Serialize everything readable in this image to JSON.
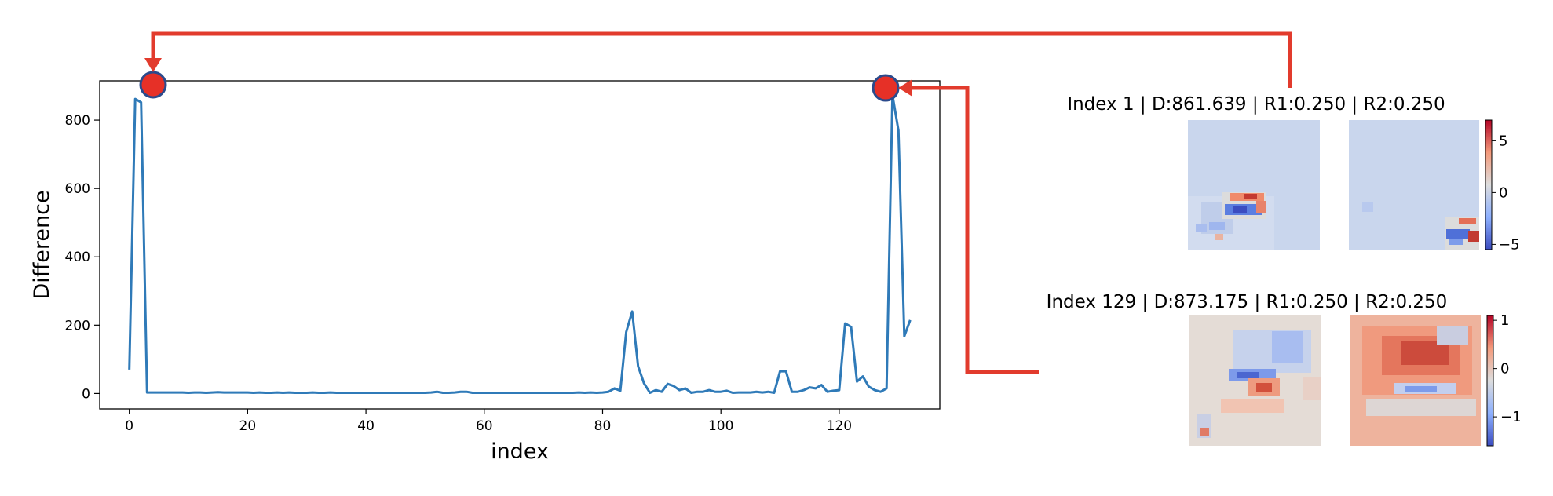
{
  "chart_data": [
    {
      "type": "line",
      "title": "",
      "xlabel": "index",
      "ylabel": "Difference",
      "xlim": [
        -5,
        137
      ],
      "ylim": [
        -45,
        915
      ],
      "xticks": [
        0,
        20,
        40,
        60,
        80,
        100,
        120
      ],
      "yticks": [
        0,
        200,
        400,
        600,
        800
      ],
      "grid": false,
      "line_color": "#2f7ab8",
      "x": [
        0,
        1,
        2,
        3,
        4,
        5,
        6,
        7,
        8,
        9,
        10,
        11,
        12,
        13,
        14,
        15,
        16,
        17,
        18,
        19,
        20,
        21,
        22,
        23,
        24,
        25,
        26,
        27,
        28,
        29,
        30,
        31,
        32,
        33,
        34,
        35,
        36,
        37,
        38,
        39,
        40,
        41,
        42,
        43,
        44,
        45,
        46,
        47,
        48,
        49,
        50,
        51,
        52,
        53,
        54,
        55,
        56,
        57,
        58,
        59,
        60,
        61,
        62,
        63,
        64,
        65,
        66,
        67,
        68,
        69,
        70,
        71,
        72,
        73,
        74,
        75,
        76,
        77,
        78,
        79,
        80,
        81,
        82,
        83,
        84,
        85,
        86,
        87,
        88,
        89,
        90,
        91,
        92,
        93,
        94,
        95,
        96,
        97,
        98,
        99,
        100,
        101,
        102,
        103,
        104,
        105,
        106,
        107,
        108,
        109,
        110,
        111,
        112,
        113,
        114,
        115,
        116,
        117,
        118,
        119,
        120,
        121,
        122,
        123,
        124,
        125,
        126,
        127,
        128,
        129,
        130,
        131,
        132
      ],
      "y": [
        70,
        862,
        852,
        3,
        3,
        3,
        3,
        3,
        3,
        3,
        2,
        3,
        3,
        2,
        3,
        4,
        3,
        3,
        3,
        3,
        3,
        2,
        3,
        2,
        2,
        3,
        2,
        3,
        2,
        2,
        2,
        3,
        2,
        2,
        3,
        2,
        2,
        2,
        2,
        2,
        2,
        2,
        2,
        2,
        2,
        2,
        2,
        2,
        2,
        2,
        2,
        3,
        5,
        2,
        2,
        3,
        5,
        5,
        2,
        2,
        2,
        2,
        2,
        2,
        2,
        2,
        2,
        2,
        2,
        2,
        2,
        2,
        2,
        2,
        2,
        2,
        3,
        2,
        3,
        2,
        3,
        5,
        15,
        8,
        180,
        240,
        80,
        30,
        2,
        10,
        5,
        28,
        22,
        10,
        15,
        2,
        5,
        5,
        10,
        5,
        5,
        8,
        2,
        3,
        3,
        3,
        5,
        3,
        5,
        2,
        65,
        65,
        5,
        5,
        10,
        18,
        15,
        25,
        5,
        8,
        10,
        205,
        195,
        35,
        50,
        20,
        10,
        5,
        15,
        873,
        770,
        168,
        215
      ],
      "annotations": [
        {
          "x": 1,
          "y": 862
        },
        {
          "x": 129,
          "y": 873
        }
      ]
    },
    {
      "type": "heatmap",
      "title": "Index 1 | D:861.639 | R1:0.250 | R2:0.250",
      "colormap": "coolwarm",
      "colorbar_range": [
        -5.5,
        7
      ],
      "colorbar_ticks": [
        5,
        0,
        -5
      ],
      "colorbar_labels": [
        "5",
        "0",
        "−5"
      ]
    },
    {
      "type": "heatmap",
      "title": "Index 129 | D:873.175 | R1:0.250 | R2:0.250",
      "colormap": "coolwarm",
      "colorbar_range": [
        -1.6,
        1.1
      ],
      "colorbar_ticks": [
        1,
        0,
        -1
      ],
      "colorbar_labels": [
        "1",
        "0",
        "−1"
      ]
    }
  ],
  "colors": {
    "line": "#2f7ab8",
    "marker_fill": "#e63027",
    "marker_edge": "#2b4a8c",
    "arrow": "#e23b2d",
    "heat_neutral": "#dcdcdc",
    "heat_light_blue": "#c8d5ec",
    "heat_light_red": "#f0b49c"
  }
}
